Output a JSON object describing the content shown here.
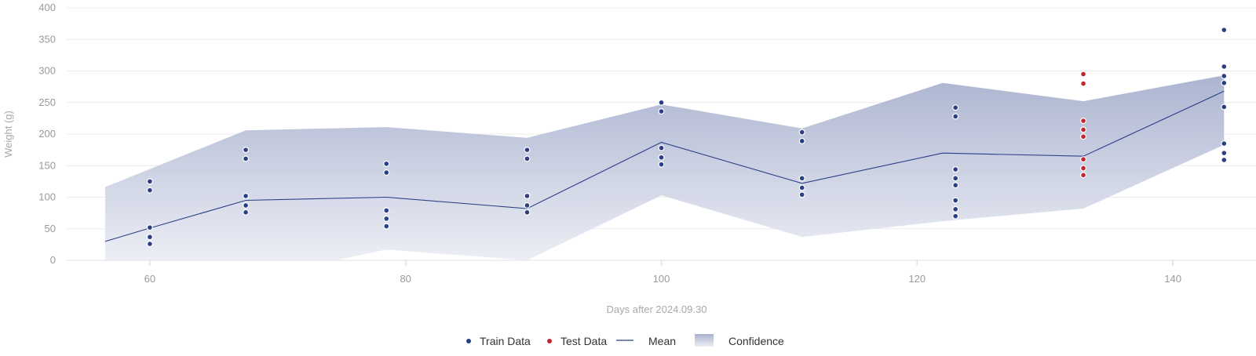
{
  "chart_data": {
    "type": "scatter",
    "xlabel": "Days after 2024.09.30",
    "ylabel": "Weight (g)",
    "xlim": [
      53.5,
      146.5
    ],
    "ylim": [
      0,
      400
    ],
    "x_ticks": [
      60,
      80,
      100,
      120,
      140
    ],
    "y_ticks": [
      0,
      50,
      100,
      150,
      200,
      250,
      300,
      350,
      400
    ],
    "grid": true,
    "legend_position": "bottom",
    "colors": {
      "train": "#2b3f86",
      "test": "#c0282d",
      "mean": "#2b3f86",
      "confidence_top": "#aab3cf",
      "confidence_bottom": "#eceef5",
      "grid": "#ececec"
    },
    "legend": [
      {
        "key": "train",
        "label": "Train Data"
      },
      {
        "key": "test",
        "label": "Test Data"
      },
      {
        "key": "mean",
        "label": "Mean"
      },
      {
        "key": "confidence",
        "label": "Confidence"
      }
    ],
    "series": [
      {
        "key": "train",
        "type": "scatter",
        "points": [
          [
            60,
            125
          ],
          [
            60,
            111
          ],
          [
            60,
            52
          ],
          [
            60,
            37
          ],
          [
            60,
            26
          ],
          [
            67.5,
            175
          ],
          [
            67.5,
            161
          ],
          [
            67.5,
            102
          ],
          [
            67.5,
            87
          ],
          [
            67.5,
            76
          ],
          [
            78.5,
            153
          ],
          [
            78.5,
            139
          ],
          [
            78.5,
            79
          ],
          [
            78.5,
            66
          ],
          [
            78.5,
            54
          ],
          [
            89.5,
            175
          ],
          [
            89.5,
            161
          ],
          [
            89.5,
            102
          ],
          [
            89.5,
            87
          ],
          [
            89.5,
            76
          ],
          [
            100,
            250
          ],
          [
            100,
            236
          ],
          [
            100,
            178
          ],
          [
            100,
            163
          ],
          [
            100,
            152
          ],
          [
            111,
            203
          ],
          [
            111,
            189
          ],
          [
            111,
            130
          ],
          [
            111,
            115
          ],
          [
            111,
            104
          ],
          [
            123,
            242
          ],
          [
            123,
            228
          ],
          [
            123,
            144
          ],
          [
            123,
            130
          ],
          [
            123,
            119
          ],
          [
            123,
            95
          ],
          [
            123,
            81
          ],
          [
            123,
            70
          ],
          [
            144,
            365
          ],
          [
            144,
            307
          ],
          [
            144,
            292
          ],
          [
            144,
            281
          ],
          [
            144,
            243
          ],
          [
            144,
            185
          ],
          [
            144,
            170
          ],
          [
            144,
            159
          ]
        ]
      },
      {
        "key": "test",
        "type": "scatter",
        "points": [
          [
            133,
            295
          ],
          [
            133,
            280
          ],
          [
            133,
            221
          ],
          [
            133,
            207
          ],
          [
            133,
            196
          ],
          [
            133,
            160
          ],
          [
            133,
            146
          ],
          [
            133,
            135
          ]
        ]
      },
      {
        "key": "mean",
        "type": "line",
        "points": [
          [
            56.5,
            30
          ],
          [
            60,
            51
          ],
          [
            67.5,
            95
          ],
          [
            78.5,
            100
          ],
          [
            89.5,
            82
          ],
          [
            100,
            187
          ],
          [
            111,
            122
          ],
          [
            122,
            170
          ],
          [
            133,
            165
          ],
          [
            144,
            268
          ]
        ]
      },
      {
        "key": "confidence",
        "type": "area",
        "upper": [
          [
            56.5,
            116
          ],
          [
            67.5,
            206
          ],
          [
            78.5,
            211
          ],
          [
            89.5,
            194
          ],
          [
            100,
            247
          ],
          [
            111,
            209
          ],
          [
            122,
            281
          ],
          [
            133,
            252
          ],
          [
            144,
            293
          ]
        ],
        "lower": [
          [
            56.5,
            0
          ],
          [
            74.5,
            0
          ],
          [
            78.5,
            17
          ],
          [
            89.5,
            0
          ],
          [
            100,
            103
          ],
          [
            111,
            37
          ],
          [
            122,
            62
          ],
          [
            133,
            82
          ],
          [
            144,
            183
          ]
        ]
      }
    ]
  }
}
